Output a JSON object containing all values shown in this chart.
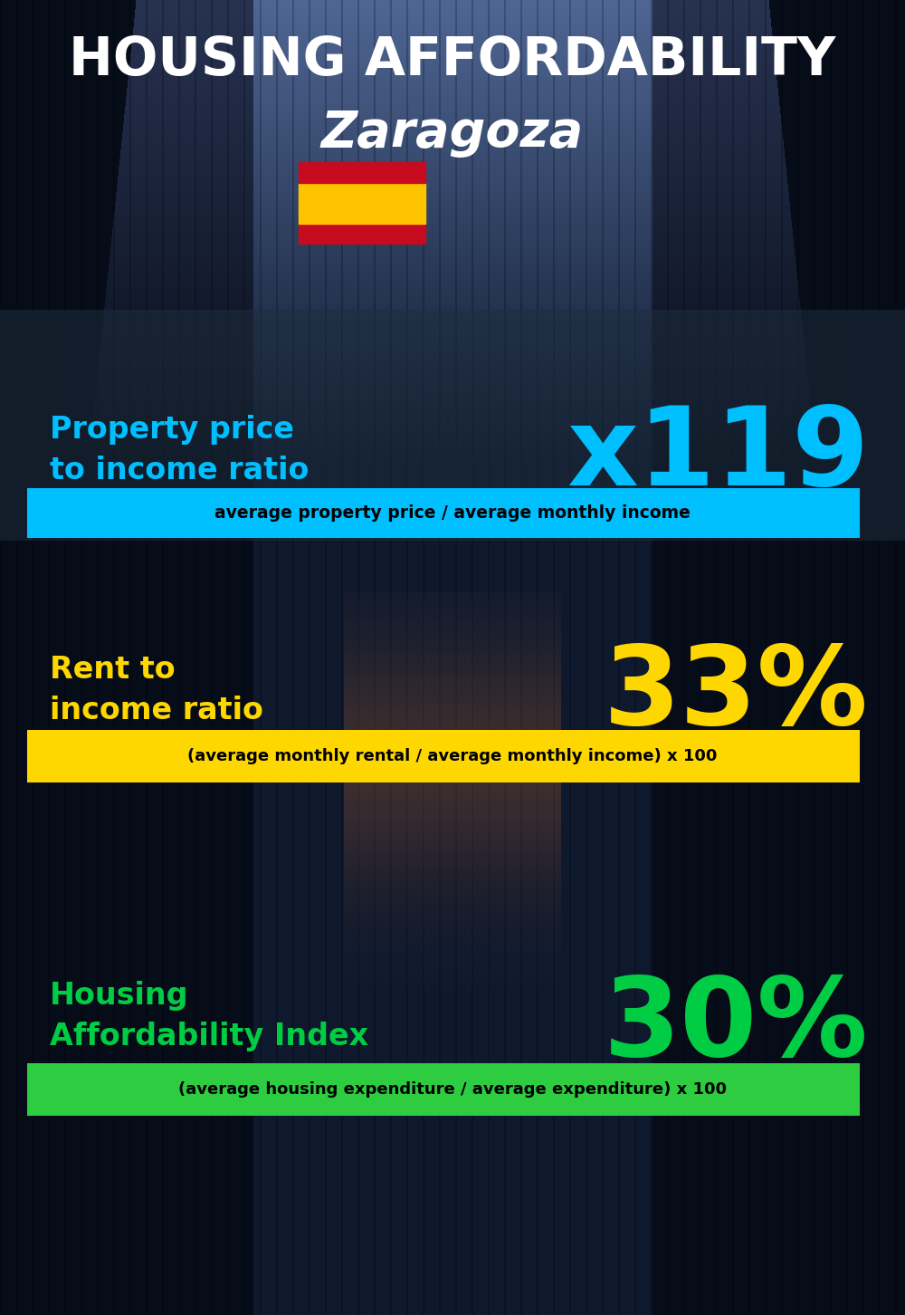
{
  "title_line1": "HOUSING AFFORDABILITY",
  "title_line2": "Zaragoza",
  "section1_label": "Property price\nto income ratio",
  "section1_value": "x119",
  "section1_label_color": "#00BFFF",
  "section1_value_color": "#00BFFF",
  "section1_formula": "average property price / average monthly income",
  "section1_formula_bg": "#00BFFF",
  "section2_label": "Rent to\nincome ratio",
  "section2_value": "33%",
  "section2_label_color": "#FFD700",
  "section2_value_color": "#FFD700",
  "section2_formula": "(average monthly rental / average monthly income) x 100",
  "section2_formula_bg": "#FFD700",
  "section3_label": "Housing\nAffordability Index",
  "section3_value": "30%",
  "section3_label_color": "#00CC44",
  "section3_value_color": "#00CC44",
  "section3_formula": "(average housing expenditure / average expenditure) x 100",
  "section3_formula_bg": "#2ECC40",
  "bg_color": "#0a1628",
  "title_color": "#FFFFFF",
  "formula_text_color": "#000000",
  "overlay1_color": "#2a3a4a",
  "flag_red": "#C60B1E",
  "flag_yellow": "#FFC400"
}
